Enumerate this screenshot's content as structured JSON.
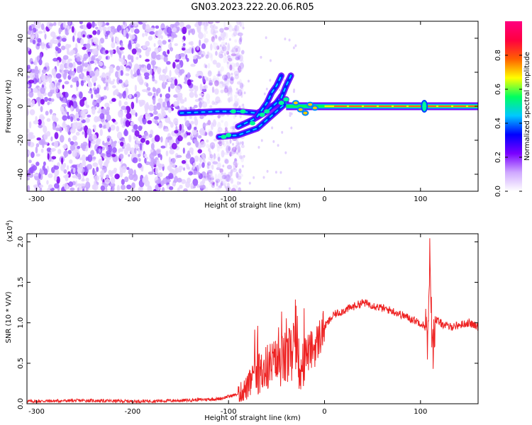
{
  "figure": {
    "title": "GN03.2023.222.20.06.R05"
  },
  "chart_data": [
    {
      "type": "heatmap",
      "name": "spectrogram",
      "xlabel": "Height of straight line (km)",
      "ylabel": "Frequency (Hz)",
      "xlim": [
        -310,
        160
      ],
      "ylim": [
        -50,
        50
      ],
      "xticks": [
        -300,
        -200,
        -100,
        0,
        100
      ],
      "yticks": [
        -40,
        -20,
        0,
        20,
        40
      ],
      "colorbar": {
        "label": "Normalized spectral amplitude",
        "range": [
          0,
          1
        ],
        "ticks": [
          "0.0",
          "0.2",
          "0.4",
          "0.6",
          "0.8"
        ],
        "colors": [
          "#ffffff",
          "#cfa8ff",
          "#7a00ff",
          "#0000ff",
          "#00c8ff",
          "#00ff60",
          "#ffff00",
          "#ff6000",
          "#ff0040",
          "#ff0080"
        ]
      },
      "features": {
        "noise_region_x": [
          -310,
          -105
        ],
        "tone_frequency_hz": 0,
        "tone_x_range": [
          -40,
          160
        ],
        "branches": [
          {
            "x": [
              -150,
              -110,
              -90,
              -70,
              -55,
              -40
            ],
            "f": [
              -4,
              -3,
              -3,
              -4,
              0,
              4
            ]
          },
          {
            "x": [
              -110,
              -90,
              -70,
              -60,
              -50,
              -40
            ],
            "f": [
              -18,
              -17,
              -13,
              -8,
              -3,
              2
            ]
          },
          {
            "x": [
              -90,
              -75,
              -60,
              -50,
              -45
            ],
            "f": [
              -12,
              -8,
              -3,
              2,
              6
            ]
          },
          {
            "x": [
              -70,
              -60,
              -55,
              -50,
              -45
            ],
            "f": [
              -6,
              2,
              8,
              12,
              18
            ]
          },
          {
            "x": [
              -45,
              -40,
              -35
            ],
            "f": [
              5,
              12,
              18
            ]
          }
        ]
      }
    },
    {
      "type": "line",
      "name": "snr",
      "xlabel": "Height of straight line (km)",
      "ylabel": "SNR (10 * V/V)",
      "yscale_label": "(x10",
      "yscale_exp": "4",
      "yscale_close": ")",
      "xlim": [
        -310,
        160
      ],
      "ylim": [
        0,
        2.1
      ],
      "xticks": [
        -300,
        -200,
        -100,
        0,
        100
      ],
      "yticks": [
        "0.0",
        "0.5",
        "1.0",
        "1.5",
        "2.0"
      ],
      "color": "#ee2222",
      "series": [
        {
          "name": "SNR",
          "x": [
            -310,
            -250,
            -200,
            -150,
            -110,
            -90,
            -80,
            -75,
            -70,
            -60,
            -50,
            -40,
            -30,
            -25,
            -20,
            -10,
            0,
            10,
            20,
            30,
            40,
            50,
            60,
            70,
            80,
            90,
            100,
            105,
            108,
            110,
            112,
            115,
            120,
            130,
            140,
            150,
            160
          ],
          "y": [
            0.03,
            0.04,
            0.03,
            0.04,
            0.06,
            0.12,
            0.2,
            0.3,
            0.35,
            0.45,
            0.5,
            0.55,
            0.65,
            0.3,
            0.6,
            0.7,
            0.95,
            1.1,
            1.15,
            1.2,
            1.25,
            1.22,
            1.18,
            1.15,
            1.1,
            1.05,
            1.0,
            0.95,
            0.7,
            2.0,
            0.6,
            1.05,
            1.0,
            0.95,
            0.97,
            1.0,
            0.95
          ]
        }
      ]
    }
  ]
}
